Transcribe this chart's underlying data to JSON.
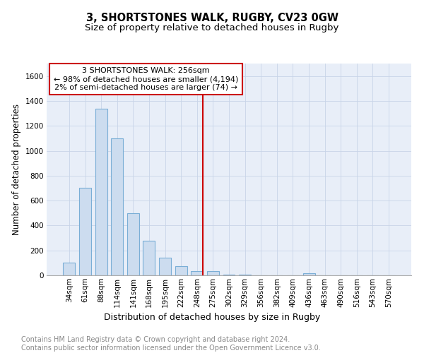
{
  "title1": "3, SHORTSTONES WALK, RUGBY, CV23 0GW",
  "title2": "Size of property relative to detached houses in Rugby",
  "xlabel": "Distribution of detached houses by size in Rugby",
  "ylabel": "Number of detached properties",
  "bins": [
    "34sqm",
    "61sqm",
    "88sqm",
    "114sqm",
    "141sqm",
    "168sqm",
    "195sqm",
    "222sqm",
    "248sqm",
    "275sqm",
    "302sqm",
    "329sqm",
    "356sqm",
    "382sqm",
    "409sqm",
    "436sqm",
    "463sqm",
    "490sqm",
    "516sqm",
    "543sqm",
    "570sqm"
  ],
  "values": [
    100,
    700,
    1335,
    1100,
    500,
    280,
    140,
    75,
    35,
    35,
    5,
    3,
    0,
    0,
    0,
    15,
    0,
    0,
    0,
    0,
    0
  ],
  "bar_color": "#ccdcef",
  "bar_edge_color": "#7aaed6",
  "vline_x_index": 8,
  "vline_color": "#cc0000",
  "annotation_text": "3 SHORTSTONES WALK: 256sqm\n← 98% of detached houses are smaller (4,194)\n2% of semi-detached houses are larger (74) →",
  "annotation_box_color": "#cc0000",
  "ylim": [
    0,
    1700
  ],
  "yticks": [
    0,
    200,
    400,
    600,
    800,
    1000,
    1200,
    1400,
    1600
  ],
  "background_color": "#e8eef8",
  "grid_color": "#c8d4e8",
  "footer_text": "Contains HM Land Registry data © Crown copyright and database right 2024.\nContains public sector information licensed under the Open Government Licence v3.0.",
  "title1_fontsize": 10.5,
  "title2_fontsize": 9.5,
  "xlabel_fontsize": 9,
  "ylabel_fontsize": 8.5,
  "tick_fontsize": 7.5,
  "annot_fontsize": 8,
  "footer_fontsize": 7
}
